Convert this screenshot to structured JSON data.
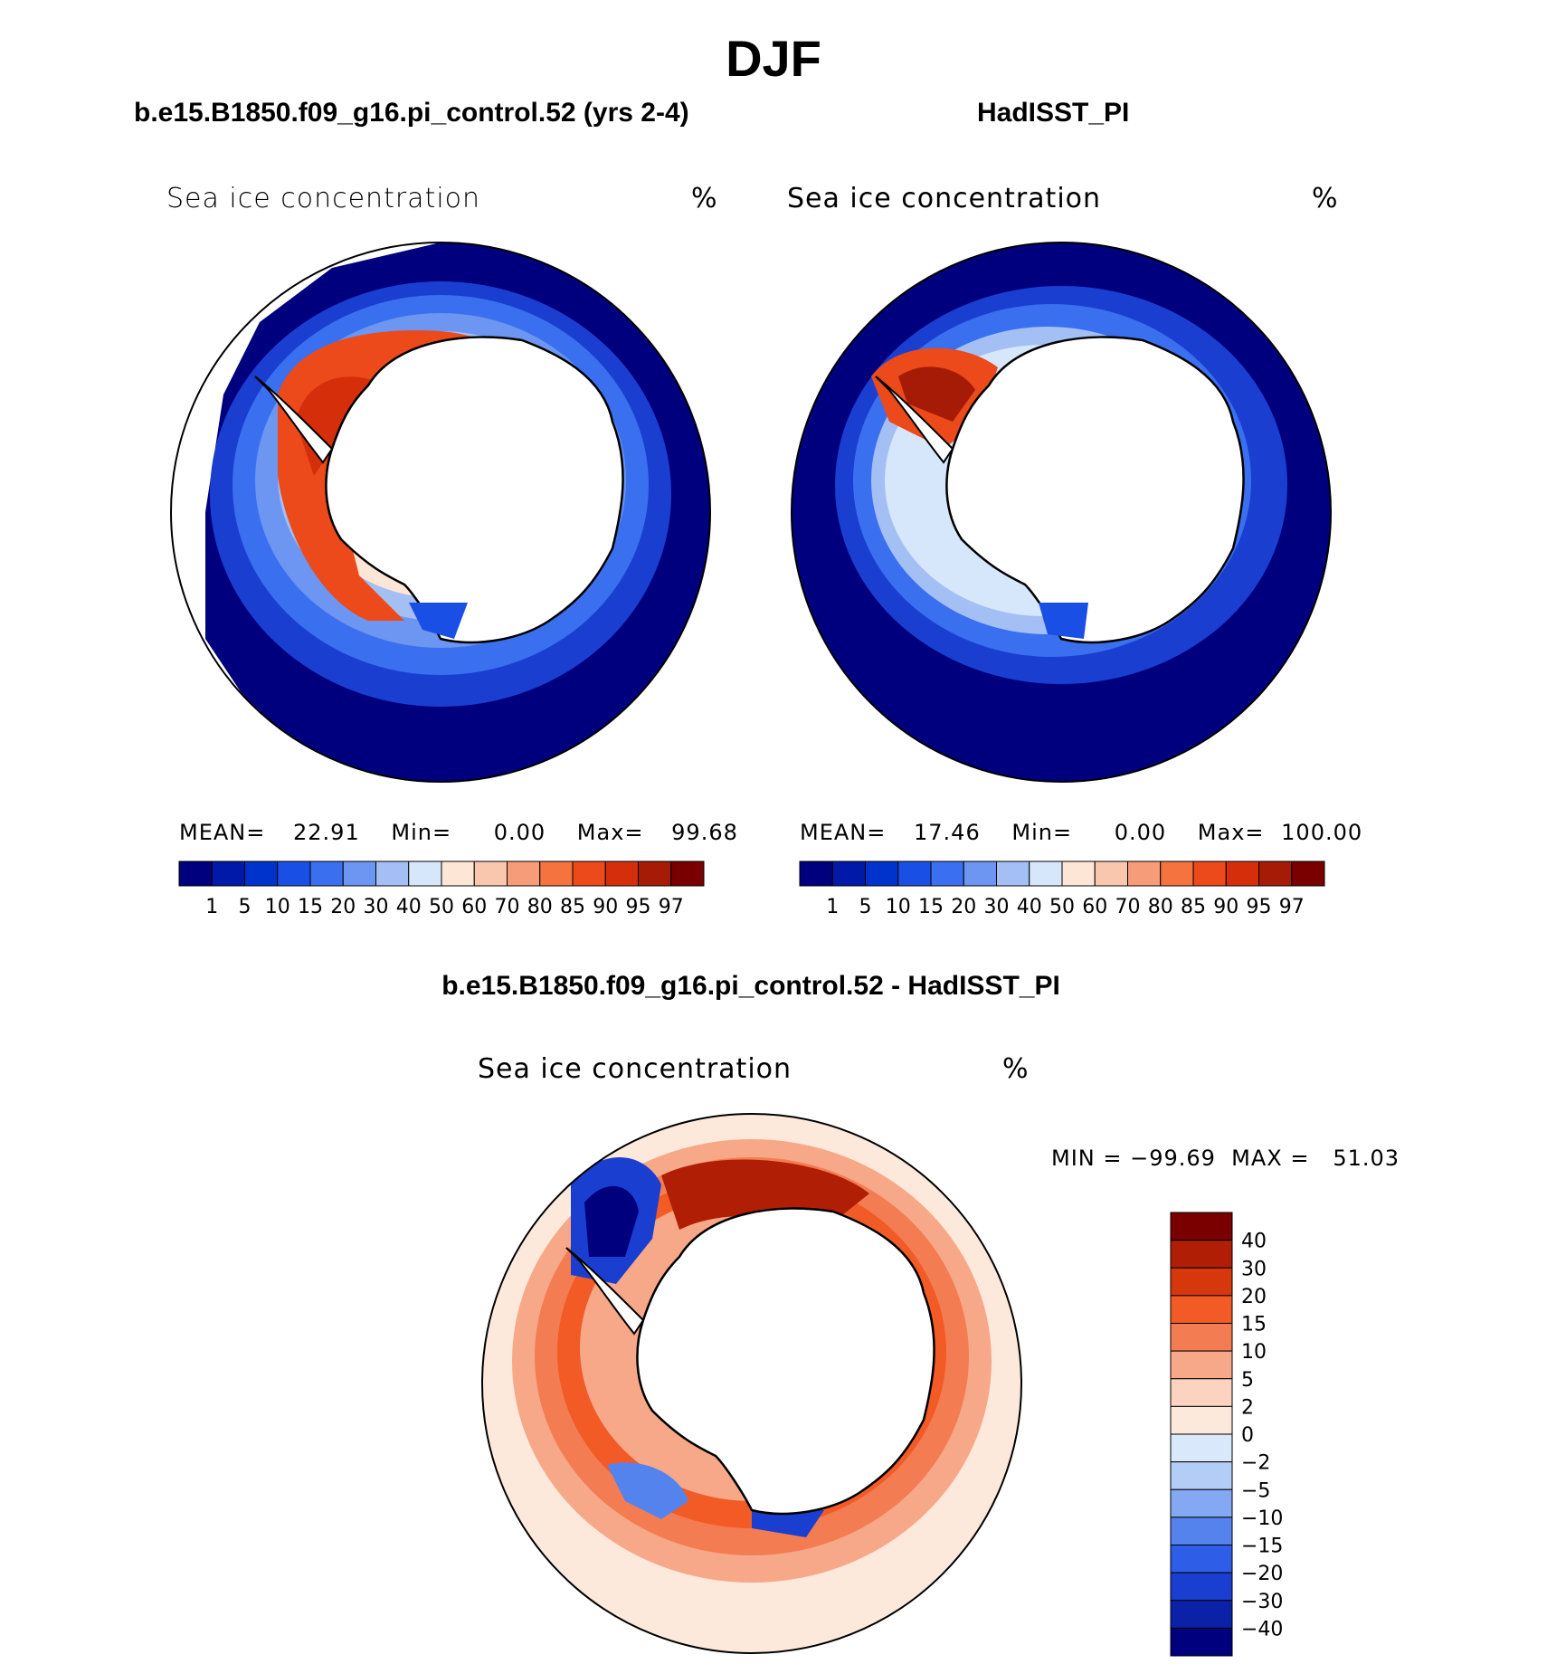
{
  "page_title": "DJF",
  "panels": [
    {
      "case_title": "b.e15.B1850.f09_g16.pi_control.52 (yrs 2-4)",
      "field_label": "Sea ice concentration",
      "units": "%",
      "stats": {
        "mean_label": "MEAN=",
        "mean": "22.91",
        "min_label": "Min=",
        "min": "0.00",
        "max_label": "Max=",
        "max": "99.68"
      }
    },
    {
      "case_title": "HadISST_PI",
      "field_label": "Sea ice concentration",
      "units": "%",
      "stats": {
        "mean_label": "MEAN=",
        "mean": "17.46",
        "min_label": "Min=",
        "min": "0.00",
        "max_label": "Max=",
        "max": "100.00"
      }
    }
  ],
  "abs_colorbar": {
    "labels": [
      "1",
      "5",
      "10",
      "15",
      "20",
      "30",
      "40",
      "50",
      "60",
      "70",
      "80",
      "85",
      "90",
      "95",
      "97"
    ],
    "colors": [
      "#00007f",
      "#0019a8",
      "#0033cc",
      "#1a4fe6",
      "#3a6ff0",
      "#6d95f2",
      "#a3bff4",
      "#d6e6fb",
      "#fde6d6",
      "#f9c7ad",
      "#f79c78",
      "#f4733f",
      "#ec4a1a",
      "#d42f0a",
      "#a51b05",
      "#7a0000"
    ]
  },
  "diff_panel": {
    "title": "b.e15.B1850.f09_g16.pi_control.52 - HadISST_PI",
    "field_label": "Sea ice concentration",
    "units": "%",
    "minmax": "MIN = −99.69  MAX =   51.03",
    "colorbar": {
      "labels": [
        "40",
        "30",
        "20",
        "15",
        "10",
        "5",
        "2",
        "0",
        "−2",
        "−5",
        "−10",
        "−15",
        "−20",
        "−30",
        "−40"
      ],
      "colors": [
        "#7a0000",
        "#b01e05",
        "#d6380c",
        "#f25a26",
        "#f47c52",
        "#f7a888",
        "#fbd3c0",
        "#fde9dc",
        "#d9e8fb",
        "#b4cdf6",
        "#85a8f2",
        "#5583ee",
        "#2e5ee8",
        "#1a3fd0",
        "#0b22a8",
        "#00007f"
      ]
    }
  }
}
